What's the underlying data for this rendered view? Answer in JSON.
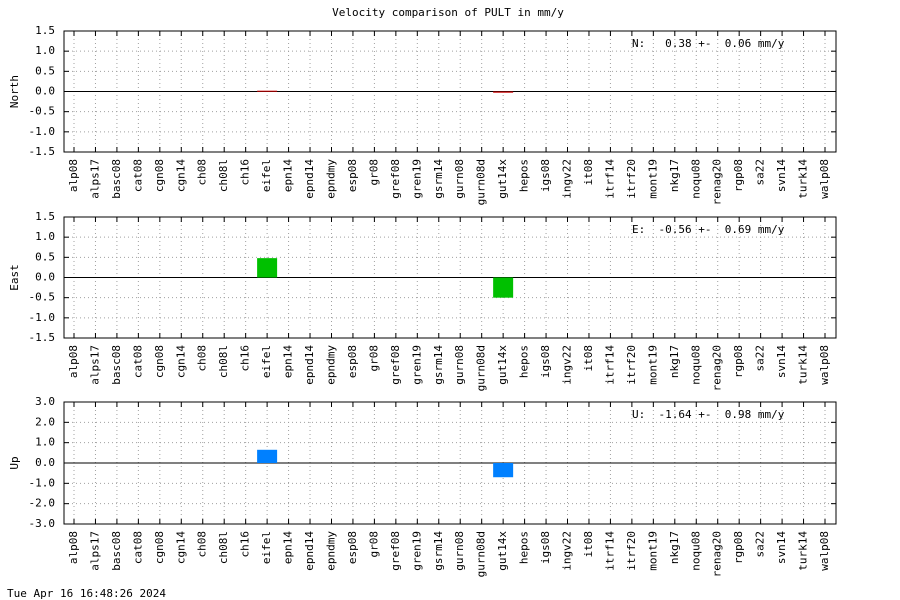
{
  "title": "Velocity comparison of PULT in mm/y",
  "timestamp": "Tue Apr 16 16:48:26 2024",
  "chart_data": [
    {
      "type": "bar",
      "ylabel": "North",
      "annotation": "N:   0.38 +-  0.06 mm/y",
      "color": "#cc0000",
      "grid": true,
      "categories": [
        "alp08",
        "alps17",
        "basc08",
        "cat08",
        "cgn08",
        "cgn14",
        "ch08",
        "ch08l",
        "ch16",
        "eifel",
        "epn14",
        "epnd14",
        "epndmy",
        "esp08",
        "gr08",
        "gref08",
        "gren19",
        "gsrm14",
        "gurn08",
        "gurn08d",
        "gut14x",
        "hepos",
        "igs08",
        "ingv22",
        "it08",
        "itrf14",
        "itrf20",
        "mont19",
        "nkg17",
        "noqu08",
        "renag20",
        "rgp08",
        "sa22",
        "svn14",
        "turk14",
        "walp08"
      ],
      "values": [
        null,
        null,
        null,
        null,
        null,
        null,
        null,
        null,
        null,
        0.02,
        null,
        null,
        null,
        null,
        null,
        null,
        null,
        null,
        null,
        null,
        -0.03,
        null,
        null,
        null,
        null,
        null,
        null,
        null,
        null,
        null,
        null,
        null,
        null,
        null,
        null,
        null
      ],
      "ylim": [
        -1.5,
        1.5
      ],
      "yticks": [
        {
          "value": -1.5,
          "label": "-1.5"
        },
        {
          "value": -1,
          "label": "-1.0"
        },
        {
          "value": -0.5,
          "label": "-0.5"
        },
        {
          "value": 0,
          "label": "0.0"
        },
        {
          "value": 0.5,
          "label": "0.5"
        },
        {
          "value": 1,
          "label": "1.0"
        },
        {
          "value": 1.5,
          "label": "1.5"
        }
      ]
    },
    {
      "type": "bar",
      "ylabel": "East",
      "annotation": "E:  -0.56 +-  0.69 mm/y",
      "color": "#00c000",
      "grid": true,
      "categories": [
        "alp08",
        "alps17",
        "basc08",
        "cat08",
        "cgn08",
        "cgn14",
        "ch08",
        "ch08l",
        "ch16",
        "eifel",
        "epn14",
        "epnd14",
        "epndmy",
        "esp08",
        "gr08",
        "gref08",
        "gren19",
        "gsrm14",
        "gurn08",
        "gurn08d",
        "gut14x",
        "hepos",
        "igs08",
        "ingv22",
        "it08",
        "itrf14",
        "itrf20",
        "mont19",
        "nkg17",
        "noqu08",
        "renag20",
        "rgp08",
        "sa22",
        "svn14",
        "turk14",
        "walp08"
      ],
      "values": [
        null,
        null,
        null,
        null,
        null,
        null,
        null,
        null,
        null,
        0.48,
        null,
        null,
        null,
        null,
        null,
        null,
        null,
        null,
        null,
        null,
        -0.5,
        null,
        null,
        null,
        null,
        null,
        null,
        null,
        null,
        null,
        null,
        null,
        null,
        null,
        null,
        null
      ],
      "ylim": [
        -1.5,
        1.5
      ],
      "yticks": [
        {
          "value": -1.5,
          "label": "-1.5"
        },
        {
          "value": -1,
          "label": "-1.0"
        },
        {
          "value": -0.5,
          "label": "-0.5"
        },
        {
          "value": 0,
          "label": "0.0"
        },
        {
          "value": 0.5,
          "label": "0.5"
        },
        {
          "value": 1,
          "label": "1.0"
        },
        {
          "value": 1.5,
          "label": "1.5"
        }
      ]
    },
    {
      "type": "bar",
      "ylabel": "Up",
      "annotation": "U:  -1.64 +-  0.98 mm/y",
      "color": "#0080ff",
      "grid": true,
      "categories": [
        "alp08",
        "alps17",
        "basc08",
        "cat08",
        "cgn08",
        "cgn14",
        "ch08",
        "ch08l",
        "ch16",
        "eifel",
        "epn14",
        "epnd14",
        "epndmy",
        "esp08",
        "gr08",
        "gref08",
        "gren19",
        "gsrm14",
        "gurn08",
        "gurn08d",
        "gut14x",
        "hepos",
        "igs08",
        "ingv22",
        "it08",
        "itrf14",
        "itrf20",
        "mont19",
        "nkg17",
        "noqu08",
        "renag20",
        "rgp08",
        "sa22",
        "svn14",
        "turk14",
        "walp08"
      ],
      "values": [
        null,
        null,
        null,
        null,
        null,
        null,
        null,
        null,
        null,
        0.65,
        null,
        null,
        null,
        null,
        null,
        null,
        null,
        null,
        null,
        null,
        -0.7,
        null,
        null,
        null,
        null,
        null,
        null,
        null,
        null,
        null,
        null,
        null,
        null,
        null,
        null,
        null
      ],
      "ylim": [
        -3,
        3
      ],
      "yticks": [
        {
          "value": -3,
          "label": "-3.0"
        },
        {
          "value": -2,
          "label": "-2.0"
        },
        {
          "value": -1,
          "label": "-1.0"
        },
        {
          "value": 0,
          "label": "0.0"
        },
        {
          "value": 1,
          "label": "1.0"
        },
        {
          "value": 2,
          "label": "2.0"
        },
        {
          "value": 3,
          "label": "3.0"
        }
      ]
    }
  ]
}
